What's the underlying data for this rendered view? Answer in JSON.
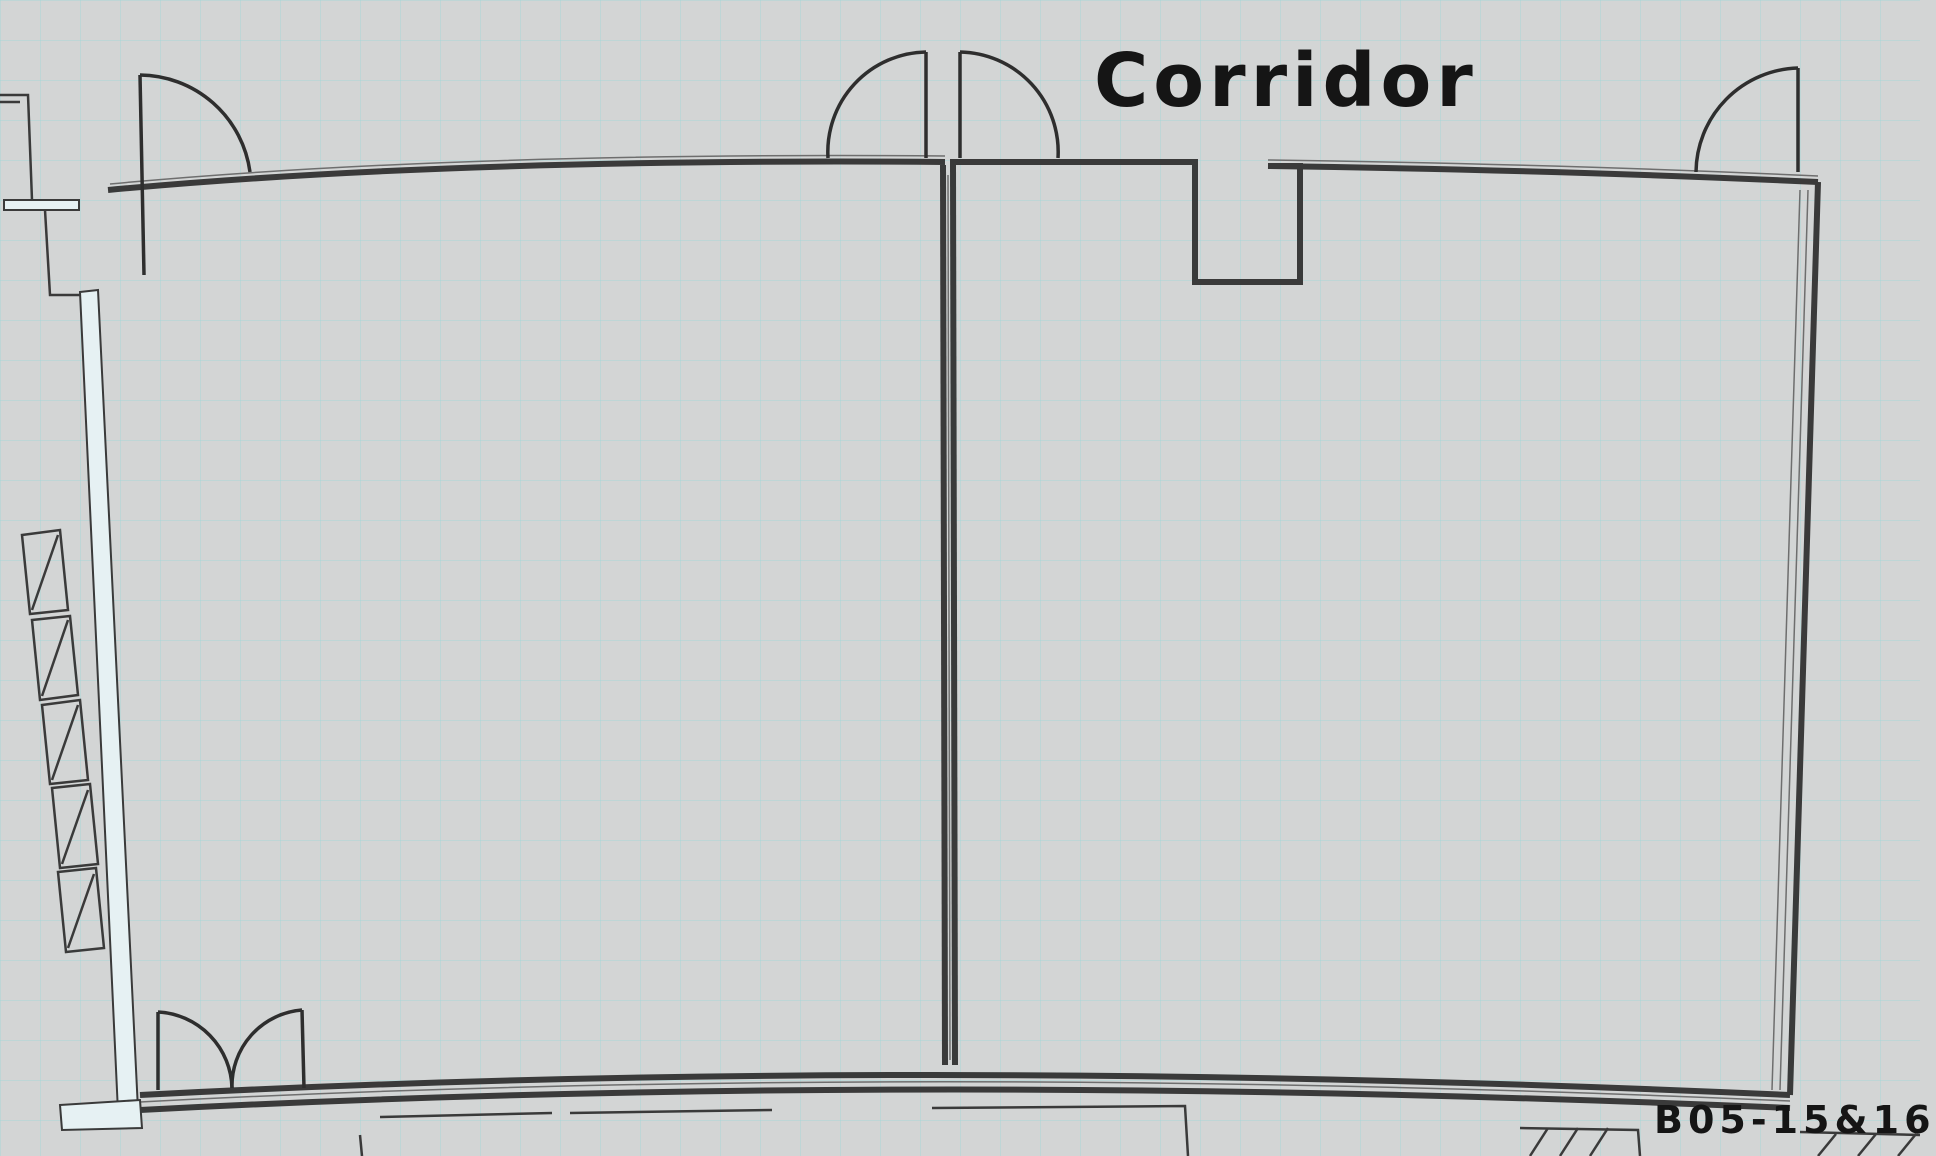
{
  "labels": {
    "corridor": "Corridor",
    "room_number": "B05-15&16"
  },
  "colors": {
    "background": "#d3d5d5",
    "grid": "#a5d7d7",
    "wall": "#3a3a3a",
    "window": "#e6f1f3",
    "text": "#151515"
  }
}
